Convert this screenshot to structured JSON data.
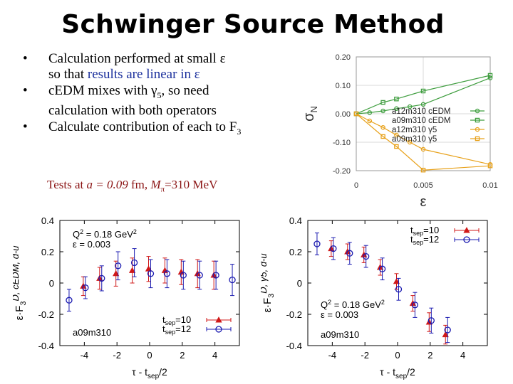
{
  "slide": {
    "title": "Schwinger Source Method",
    "bullets": [
      {
        "line1": "Calculation performed at small ε",
        "line2a": "so that ",
        "line2b": "results are linear in ε"
      },
      {
        "line1": "cEDM mixes with γ",
        "line1_sub": "5",
        "line1_end": ", so need",
        "line2": "calculation with both operators"
      },
      {
        "line1": "Calculate contribution of each to F",
        "line1_sub": "3"
      }
    ],
    "tests": {
      "pre": "Tests at ",
      "a": "a",
      "eq": " = 0.09",
      "unit": " fm, ",
      "M": "M",
      "Msub": "π",
      "Mval": "=310 MeV"
    }
  },
  "chart_data": [
    {
      "type": "line",
      "xlabel": "ε",
      "ylabel": "σN",
      "xlim": [
        0,
        0.01
      ],
      "ylim": [
        -0.2,
        0.2
      ],
      "xticks": [
        "0",
        "0.005",
        "0.01"
      ],
      "yticks": [
        "0.20",
        "0.10",
        "0.00",
        "-0.10",
        "-0.20"
      ],
      "legend_position": "right",
      "series": [
        {
          "name": "a12m310 cEDM",
          "color": "#3f9e3f",
          "marker": "circle",
          "x": [
            0,
            0.001,
            0.002,
            0.003,
            0.004,
            0.005,
            0.01
          ],
          "y": [
            0,
            0.004,
            0.01,
            0.018,
            0.025,
            0.033,
            0.126
          ]
        },
        {
          "name": "a09m310 cEDM",
          "color": "#3f9e3f",
          "marker": "square",
          "x": [
            0,
            0.002,
            0.003,
            0.005,
            0.01
          ],
          "y": [
            0,
            0.04,
            0.052,
            0.08,
            0.135
          ]
        },
        {
          "name": "a12m310 γ5",
          "color": "#e8a21c",
          "marker": "circle",
          "x": [
            0,
            0.001,
            0.002,
            0.003,
            0.004,
            0.005,
            0.01
          ],
          "y": [
            0,
            -0.025,
            -0.048,
            -0.075,
            -0.1,
            -0.125,
            -0.178
          ]
        },
        {
          "name": "a09m310 γ5",
          "color": "#e8a21c",
          "marker": "square",
          "x": [
            0,
            0.002,
            0.003,
            0.005,
            0.01
          ],
          "y": [
            0,
            -0.08,
            -0.115,
            -0.198,
            -0.183
          ]
        }
      ]
    },
    {
      "type": "scatter",
      "xlabel": "τ - tsep/2",
      "ylabel": "ε·F3D, cEDM, d-u",
      "xlim": [
        -5.5,
        5.5
      ],
      "ylim": [
        -0.4,
        0.4
      ],
      "xticks": [
        "-4",
        "-2",
        "0",
        "2",
        "4"
      ],
      "yticks": [
        "0.4",
        "0.2",
        "0",
        "-0.2",
        "-0.4"
      ],
      "annotations": [
        "Q2 = 0.18 GeV2",
        "ε = 0.003",
        "a09m310"
      ],
      "legend_position": "bottom-right",
      "series": [
        {
          "name": "tsep=10",
          "color": "#d01818",
          "marker": "triangle",
          "x": [
            -4,
            -3,
            -2,
            -1,
            0,
            1,
            2,
            3,
            4
          ],
          "y": [
            -0.02,
            0.03,
            0.06,
            0.08,
            0.09,
            0.08,
            0.07,
            0.06,
            0.05
          ],
          "err": [
            0.06,
            0.07,
            0.08,
            0.08,
            0.08,
            0.08,
            0.08,
            0.09,
            0.09
          ]
        },
        {
          "name": "tsep=12",
          "color": "#1a1ab0",
          "marker": "circle",
          "x": [
            -5,
            -4,
            -3,
            -2,
            -1,
            0,
            1,
            2,
            3,
            4,
            5
          ],
          "y": [
            -0.11,
            -0.03,
            0.03,
            0.11,
            0.13,
            0.06,
            0.06,
            0.05,
            0.05,
            0.05,
            0.02
          ],
          "err": [
            0.07,
            0.07,
            0.08,
            0.09,
            0.09,
            0.09,
            0.09,
            0.09,
            0.09,
            0.09,
            0.1
          ]
        }
      ]
    },
    {
      "type": "scatter",
      "xlabel": "τ - tsep/2",
      "ylabel": "ε·F3D, γ5, d-u",
      "xlim": [
        -5.5,
        5.5
      ],
      "ylim": [
        -0.4,
        0.4
      ],
      "xticks": [
        "-4",
        "-2",
        "0",
        "2",
        "4"
      ],
      "yticks": [
        "0.4",
        "0.2",
        "0",
        "-0.2",
        "-0.4"
      ],
      "annotations": [
        "Q2 = 0.18 GeV2",
        "ε = 0.003",
        "a09m310"
      ],
      "legend_position": "top-right",
      "series": [
        {
          "name": "tsep=10",
          "color": "#d01818",
          "marker": "triangle",
          "x": [
            -4,
            -3,
            -2,
            -1,
            0,
            1,
            2,
            3
          ],
          "y": [
            0.22,
            0.2,
            0.18,
            0.1,
            0.01,
            -0.13,
            -0.25,
            -0.33
          ],
          "err": [
            0.05,
            0.05,
            0.05,
            0.05,
            0.05,
            0.05,
            0.06,
            0.06
          ]
        },
        {
          "name": "tsep=12",
          "color": "#1a1ab0",
          "marker": "circle",
          "x": [
            -5,
            -4,
            -3,
            -2,
            -1,
            0,
            1,
            2,
            3
          ],
          "y": [
            0.25,
            0.22,
            0.19,
            0.17,
            0.09,
            -0.04,
            -0.14,
            -0.24,
            -0.3
          ],
          "err": [
            0.07,
            0.07,
            0.07,
            0.07,
            0.07,
            0.07,
            0.08,
            0.08,
            0.08
          ]
        }
      ]
    }
  ]
}
